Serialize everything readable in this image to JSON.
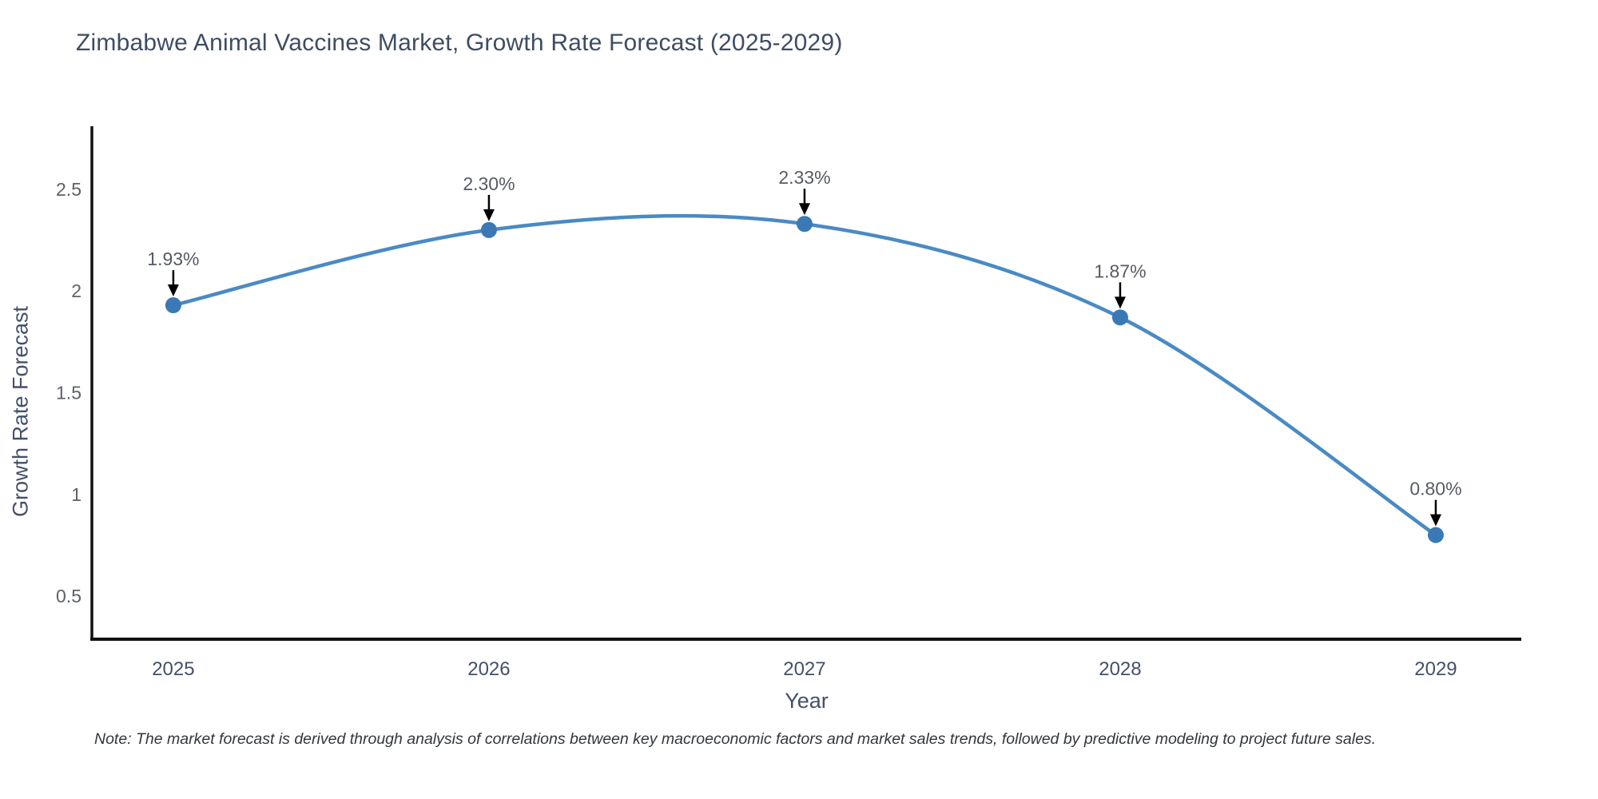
{
  "chart": {
    "title": "Zimbabwe Animal Vaccines Market, Growth Rate Forecast (2025-2029)",
    "xlabel": "Year",
    "ylabel": "Growth Rate Forecast",
    "note": "Note: The market forecast is derived through analysis of correlations between key macroeconomic factors and market sales trends, followed by predictive modeling to project future sales."
  },
  "chart_data": {
    "type": "line",
    "line_shape": "spline",
    "x": [
      2025,
      2026,
      2027,
      2028,
      2029
    ],
    "y": [
      1.93,
      2.3,
      2.33,
      1.87,
      0.8
    ],
    "point_labels": [
      "1.93%",
      "2.30%",
      "2.33%",
      "1.87%",
      "0.80%"
    ],
    "annotation_style": "black-arrow-down",
    "title": "Zimbabwe Animal Vaccines Market, Growth Rate Forecast (2025-2029)",
    "xlabel": "Year",
    "ylabel": "Growth Rate Forecast",
    "xticks": [
      "2025",
      "2026",
      "2027",
      "2028",
      "2029"
    ],
    "yticks": [
      0.5,
      1,
      1.5,
      2,
      2.5
    ],
    "xlim": [
      2024.742,
      2029.271
    ],
    "ylim": [
      0.288,
      2.822
    ],
    "grid": false,
    "legend": false,
    "line_color": "#4a8ac4",
    "marker_color": "#3a79b5",
    "axis_color": "#111111",
    "arrow_color": "#000000"
  }
}
